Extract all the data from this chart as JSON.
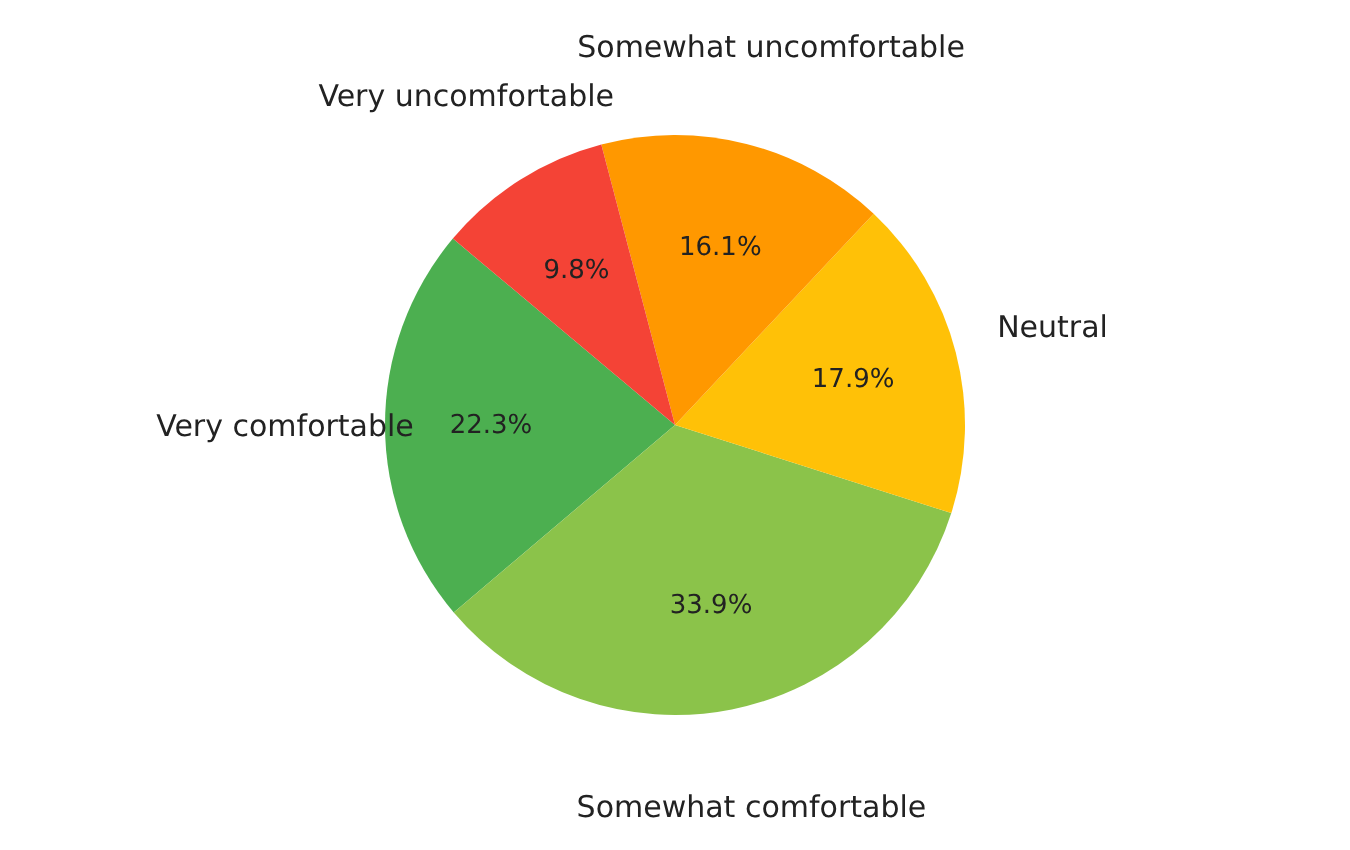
{
  "chart_data": {
    "type": "pie",
    "categories": [
      "Very comfortable",
      "Somewhat comfortable",
      "Neutral",
      "Somewhat uncomfortable",
      "Very uncomfortable"
    ],
    "values": [
      22.3,
      33.9,
      17.9,
      16.1,
      9.8
    ],
    "value_labels": [
      "22.3%",
      "33.9%",
      "17.9%",
      "16.1%",
      "9.8%"
    ],
    "colors": [
      "#4caf50",
      "#8bc34a",
      "#ffc107",
      "#ff9800",
      "#f44336"
    ]
  }
}
